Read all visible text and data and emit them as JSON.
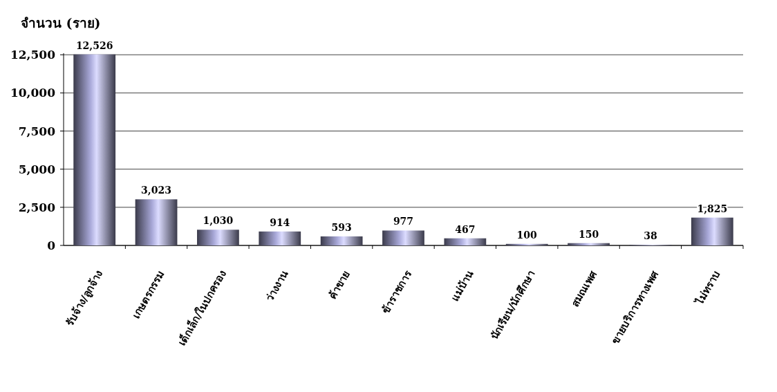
{
  "chart_data": {
    "type": "bar",
    "ylabel": "จำนวน (ราย)",
    "categories": [
      "รับจ้าง/ลูกจ้าง",
      "เกษตรกรรม",
      "เด็กเล็ก/ในปกครอง",
      "ว่างงาน",
      "ค้าขาย",
      "ข้าราชการ",
      "แม่บ้าน",
      "นักเรียน/นักศึกษา",
      "สมณเพศ",
      "ขายบริการทางเพศ",
      "ไม่ทราบ"
    ],
    "values": [
      12526,
      3023,
      1030,
      914,
      593,
      977,
      467,
      100,
      150,
      38,
      1825
    ],
    "value_labels": [
      "12,526",
      "3,023",
      "1,030",
      "914",
      "593",
      "977",
      "467",
      "100",
      "150",
      "38",
      "1,825"
    ],
    "color": "#a8a8d8",
    "ylim": [
      0,
      12600
    ],
    "yticks": [
      {
        "value": 0,
        "label": "0"
      },
      {
        "value": 2500,
        "label": "2,500"
      },
      {
        "value": 5000,
        "label": "5,000"
      },
      {
        "value": 7500,
        "label": "7,500"
      },
      {
        "value": 10000,
        "label": "10,000"
      },
      {
        "value": 12500,
        "label": "12,500"
      }
    ],
    "grid": "y"
  }
}
